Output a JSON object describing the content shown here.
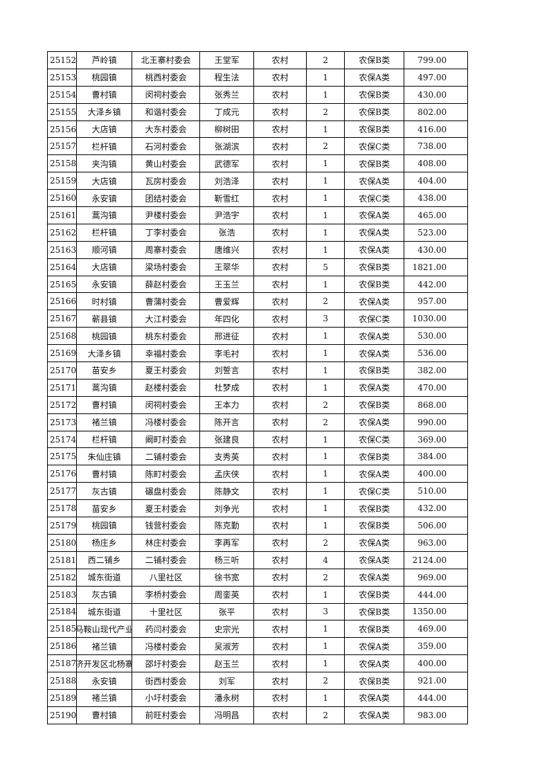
{
  "rows": [
    [
      "25152",
      "芦岭镇",
      "北王寨村委会",
      "王堂军",
      "农村",
      "2",
      "农保B类",
      "799.00"
    ],
    [
      "25153",
      "桃园镇",
      "桃西村委会",
      "程生法",
      "农村",
      "1",
      "农保A类",
      "497.00"
    ],
    [
      "25154",
      "曹村镇",
      "闵祠村委会",
      "张秀兰",
      "农村",
      "1",
      "农保B类",
      "430.00"
    ],
    [
      "25155",
      "大泽乡镇",
      "和谐村委会",
      "丁成元",
      "农村",
      "2",
      "农保B类",
      "802.00"
    ],
    [
      "25156",
      "大店镇",
      "大东村委会",
      "柳树田",
      "农村",
      "1",
      "农保B类",
      "416.00"
    ],
    [
      "25157",
      "栏杆镇",
      "石河村委会",
      "张湖滨",
      "农村",
      "2",
      "农保C类",
      "738.00"
    ],
    [
      "25158",
      "夹沟镇",
      "黄山村委会",
      "武德军",
      "农村",
      "1",
      "农保B类",
      "408.00"
    ],
    [
      "25159",
      "大店镇",
      "瓦房村委会",
      "刘浩泽",
      "农村",
      "1",
      "农保A类",
      "404.00"
    ],
    [
      "25160",
      "永安镇",
      "团结村委会",
      "靳雪红",
      "农村",
      "1",
      "农保C类",
      "438.00"
    ],
    [
      "25161",
      "蒿沟镇",
      "尹楼村委会",
      "尹浩宇",
      "农村",
      "1",
      "农保A类",
      "465.00"
    ],
    [
      "25162",
      "栏杆镇",
      "丁李村委会",
      "张浩",
      "农村",
      "1",
      "农保A类",
      "523.00"
    ],
    [
      "25163",
      "顺河镇",
      "周寨村委会",
      "唐维兴",
      "农村",
      "1",
      "农保A类",
      "430.00"
    ],
    [
      "25164",
      "大店镇",
      "梁场村委会",
      "王翠华",
      "农村",
      "5",
      "农保B类",
      "1821.00"
    ],
    [
      "25165",
      "永安镇",
      "薛赵村委会",
      "王玉兰",
      "农村",
      "1",
      "农保B类",
      "442.00"
    ],
    [
      "25166",
      "时村镇",
      "曹蒲村委会",
      "曹爱辉",
      "农村",
      "2",
      "农保A类",
      "957.00"
    ],
    [
      "25167",
      "蕲县镇",
      "大江村委会",
      "年四化",
      "农村",
      "3",
      "农保C类",
      "1030.00"
    ],
    [
      "25168",
      "桃园镇",
      "桃东村委会",
      "邢进征",
      "农村",
      "1",
      "农保A类",
      "530.00"
    ],
    [
      "25169",
      "大泽乡镇",
      "幸福村委会",
      "李毛衬",
      "农村",
      "1",
      "农保A类",
      "536.00"
    ],
    [
      "25170",
      "苗安乡",
      "夏王村委会",
      "刘誓言",
      "农村",
      "1",
      "农保B类",
      "382.00"
    ],
    [
      "25171",
      "蒿沟镇",
      "赵楼村委会",
      "杜梦成",
      "农村",
      "1",
      "农保A类",
      "470.00"
    ],
    [
      "25172",
      "曹村镇",
      "闵祠村委会",
      "王本力",
      "农村",
      "2",
      "农保B类",
      "868.00"
    ],
    [
      "25173",
      "褚兰镇",
      "冯楼村委会",
      "陈开言",
      "农村",
      "2",
      "农保A类",
      "990.00"
    ],
    [
      "25174",
      "栏杆镇",
      "阚町村委会",
      "张建良",
      "农村",
      "1",
      "农保C类",
      "369.00"
    ],
    [
      "25175",
      "朱仙庄镇",
      "二铺村委会",
      "支秀英",
      "农村",
      "1",
      "农保B类",
      "384.00"
    ],
    [
      "25176",
      "曹村镇",
      "陈町村委会",
      "孟庆侠",
      "农村",
      "1",
      "农保A类",
      "400.00"
    ],
    [
      "25177",
      "灰古镇",
      "碾盘村委会",
      "陈静文",
      "农村",
      "1",
      "农保C类",
      "510.00"
    ],
    [
      "25178",
      "苗安乡",
      "夏王村委会",
      "刘争光",
      "农村",
      "1",
      "农保B类",
      "432.00"
    ],
    [
      "25179",
      "桃园镇",
      "钱营村委会",
      "陈克勤",
      "农村",
      "1",
      "农保B类",
      "506.00"
    ],
    [
      "25180",
      "杨庄乡",
      "林庄村委会",
      "李再军",
      "农村",
      "2",
      "农保A类",
      "963.00"
    ],
    [
      "25181",
      "西二铺乡",
      "二铺村委会",
      "杨三听",
      "农村",
      "4",
      "农保A类",
      "2124.00"
    ],
    [
      "25182",
      "城东街道",
      "八里社区",
      "徐书宽",
      "农村",
      "2",
      "农保A类",
      "969.00"
    ],
    [
      "25183",
      "灰古镇",
      "李桥村委会",
      "周銮英",
      "农村",
      "1",
      "农保B类",
      "444.00"
    ],
    [
      "25184",
      "城东街道",
      "十里社区",
      "张平",
      "农村",
      "3",
      "农保B类",
      "1350.00"
    ],
    [
      "25185",
      "马鞍山现代产业",
      "药闫村委会",
      "史宗光",
      "农村",
      "1",
      "农保B类",
      "469.00"
    ],
    [
      "25186",
      "褚兰镇",
      "冯楼村委会",
      "吴淑芳",
      "农村",
      "1",
      "农保A类",
      "359.00"
    ],
    [
      "25187",
      "济开发区北杨寨",
      "邵圩村委会",
      "赵玉兰",
      "农村",
      "1",
      "农保A类",
      "400.00"
    ],
    [
      "25188",
      "永安镇",
      "街西村委会",
      "刘军",
      "农村",
      "2",
      "农保B类",
      "921.00"
    ],
    [
      "25189",
      "褚兰镇",
      "小圩村委会",
      "潘永树",
      "农村",
      "1",
      "农保A类",
      "444.00"
    ],
    [
      "25190",
      "曹村镇",
      "前旺村委会",
      "冯明昌",
      "农村",
      "2",
      "农保A类",
      "983.00"
    ]
  ]
}
